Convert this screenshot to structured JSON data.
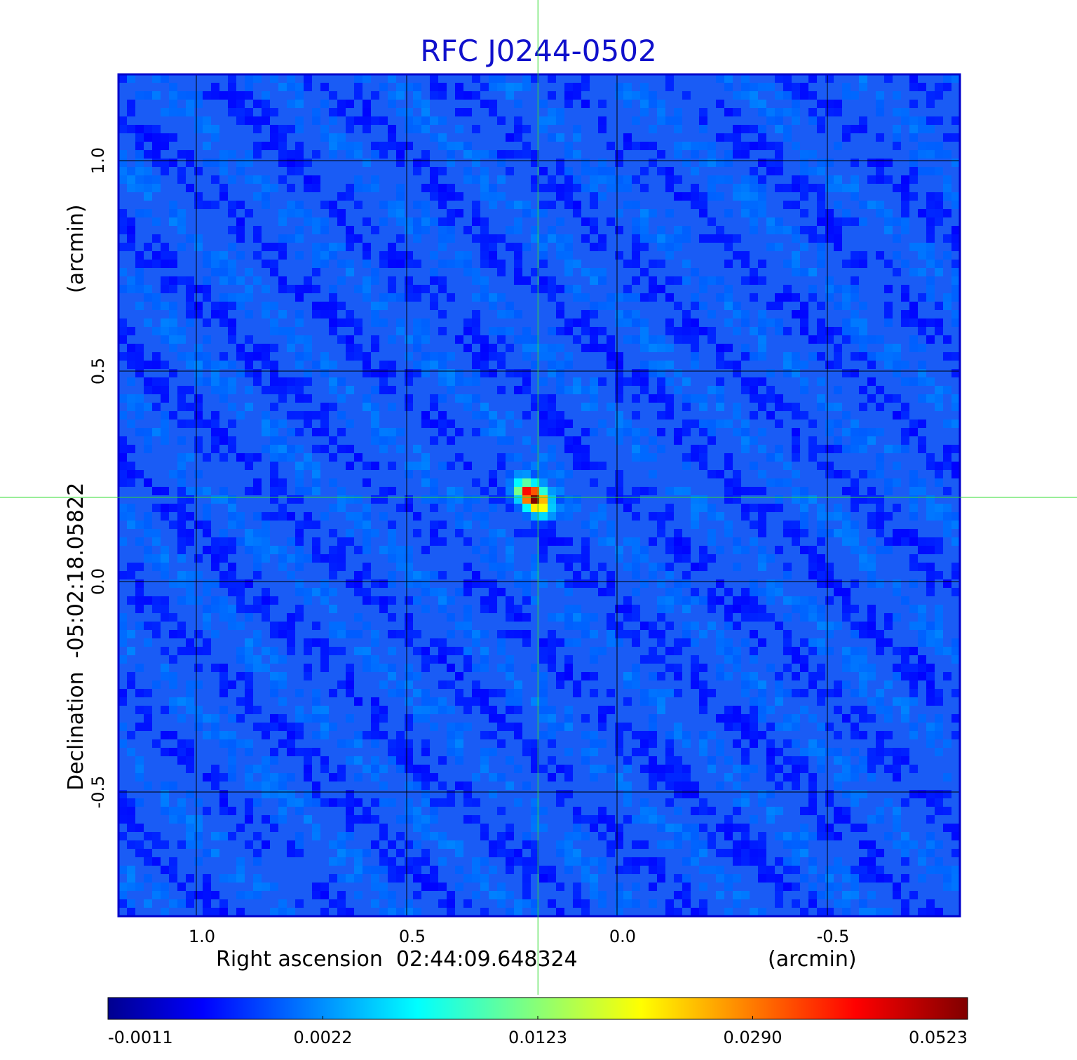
{
  "chart_data": {
    "type": "heatmap",
    "title": "RFC J0244-0502",
    "xlabel": "Right ascension  02:44:09.648324",
    "xunit": "(arcmin)",
    "ylabel": "Declination  -05:02:18.05822",
    "yunit": "(arcmin)",
    "xlim": [
      1.185,
      -0.815
    ],
    "ylim": [
      -0.795,
      1.205
    ],
    "x_ticks": [
      1.0,
      0.5,
      0.0,
      -0.5
    ],
    "x_tick_labels": [
      "1.0",
      "0.5",
      "0.0",
      "-0.5"
    ],
    "y_ticks": [
      1.0,
      0.5,
      0.0,
      -0.5
    ],
    "y_tick_labels": [
      "1.0",
      "0.5",
      "0.0",
      "-0.5"
    ],
    "grid": true,
    "colormap": "jet",
    "colorbar_ticks": [
      "-0.0011",
      "0.0022",
      "0.0123",
      "0.0290",
      "0.0523"
    ],
    "colorbar_range": [
      -0.0011,
      0.0523
    ],
    "source": {
      "x": 0.2,
      "y": 0.2,
      "peak": 0.0523
    },
    "crosshair": {
      "x": 0.188,
      "y": 0.2,
      "color": "#33dd33"
    },
    "colors": {
      "title": "#1010cc",
      "grid": "#000000",
      "frame": "#0000cc",
      "background_map": "#1a5cf5"
    }
  }
}
